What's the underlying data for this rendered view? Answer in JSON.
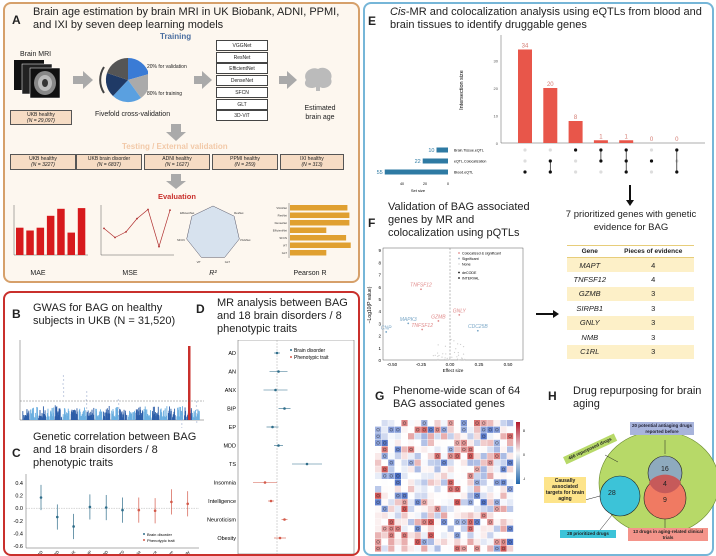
{
  "panel_a": {
    "letter": "A",
    "title": "Brain age estimation by brain MRI in UK Biobank, ADNI, PPMI, and IXI by seven deep learning models",
    "training": "Training",
    "brain_mri": "Brain MRI",
    "ukb_train": {
      "name": "UKB healthy",
      "n": "(N = 29,097)"
    },
    "split_validation": "20% for validation",
    "split_training": "80% for training",
    "cv_label": "Fivefold cross-validation",
    "models": [
      "VGGNet",
      "ResNet",
      "EfficientNet",
      "DenseNet",
      "SFCN",
      "GLT",
      "3D-ViT"
    ],
    "estimated": "Estimated brain age",
    "testing": "Testing / External validation",
    "test_sets": [
      {
        "name": "UKB healthy",
        "n": "(N = 3227)"
      },
      {
        "name": "UKB brain disorder",
        "n": "(N = 6837)"
      },
      {
        "name": "ADNI healthy",
        "n": "(N = 1627)"
      },
      {
        "name": "PPMI healthy",
        "n": "(N = 259)"
      },
      {
        "name": "IXI healthy",
        "n": "(N = 313)"
      }
    ],
    "evaluation": "Evaluation",
    "metrics": [
      "MAE",
      "MSE",
      "R²",
      "Pearson R"
    ],
    "radar_labels": [
      "DenseNet",
      "ResNet",
      "VGGNet",
      "GLT",
      "ViT",
      "SFCN",
      "EfficientNet"
    ],
    "pearson_labels": [
      "VGGNet",
      "ResNet",
      "DenseNet",
      "EfficientNet",
      "SFCN",
      "ViT",
      "GLT"
    ],
    "mae_values": [
      3.9,
      3.5,
      3.9,
      5.6,
      6.6,
      3.2,
      6.7
    ],
    "mse_values": [
      3.8,
      2.5,
      3.3,
      5.2,
      6.5,
      1.2,
      6.4
    ],
    "pearson_values": [
      0.87,
      0.9,
      0.9,
      0.55,
      0.85,
      0.92,
      0.55
    ]
  },
  "panel_b": {
    "letter": "B",
    "title": "GWAS for BAG on healthy subjects in UKB (N = 31,520)"
  },
  "panel_c": {
    "letter": "C",
    "title": "Genetic correlation between BAG and 18 brain disorders / 8 phenotypic traits",
    "yticks": [
      "0.4",
      "0.2",
      "0.0",
      "-0.2",
      "-0.4",
      "-0.6"
    ],
    "categories": [
      "AD",
      "PD",
      "ANX",
      "BIP",
      "MDD",
      "TS",
      "Insomnia",
      "Intelligence",
      "Neuroticism",
      "Obesity"
    ],
    "values": [
      0.17,
      -0.14,
      -0.29,
      0.02,
      0.01,
      -0.03,
      -0.03,
      -0.04,
      0.1,
      0.07
    ],
    "legend": [
      "Brain disorder",
      "Phenotypic trait"
    ]
  },
  "panel_d": {
    "letter": "D",
    "title": "MR analysis between BAG and 18 brain disorders / 8 phenotypic traits",
    "traits": [
      "AD",
      "AN",
      "ANX",
      "BIP",
      "EP",
      "MDD",
      "TS",
      "Insomnia",
      "Intelligence",
      "Neuroticism",
      "Obesity"
    ],
    "estimates": [
      0.0,
      0.01,
      -0.01,
      0.05,
      -0.03,
      0.01,
      0.2,
      -0.08,
      -0.04,
      0.05,
      0.02
    ],
    "legend": [
      "Brain disorder",
      "Phenotypic trait"
    ]
  },
  "panel_e": {
    "letter": "E",
    "title_italic": "Cis",
    "title_rest": "-MR and colocalization analysis using eQTLs from blood and brain tissues to identify druggable genes",
    "ylabel": "Intersection size",
    "yticks": [
      "30",
      "20",
      "10",
      "0"
    ],
    "intersections": [
      34,
      20,
      8,
      1,
      1,
      0,
      0
    ],
    "sets": [
      {
        "name": "Brain.Tissue.eQTL",
        "size": 10
      },
      {
        "name": "eQTL.Colocalization",
        "size": 22
      },
      {
        "name": "Blood.eQTL",
        "size": 55
      }
    ],
    "set_ticks": [
      "40",
      "20",
      "0"
    ],
    "set_label": "Set size"
  },
  "panel_f": {
    "letter": "F",
    "title": "Validation of BAG associated genes by MR and colocalization using pQTLs",
    "ylabel": "−Log10(P value)",
    "xlabel": "Effect size",
    "xticks": [
      "-0.50",
      "-0.25",
      "0.00",
      "0.25",
      "0.50"
    ],
    "yticks": [
      "9",
      "8",
      "7",
      "6",
      "5",
      "4",
      "3",
      "2",
      "1",
      "0"
    ],
    "legend": [
      "Colocalized & significant",
      "Significant",
      "None",
      "deCODE",
      "INTERVAL"
    ],
    "labels": [
      {
        "gene": "TNFSF12",
        "x": -0.25,
        "y": 5.8,
        "c": "#e08a8a"
      },
      {
        "gene": "MAPK3",
        "x": -0.36,
        "y": 3.0,
        "c": "#7aa7c7"
      },
      {
        "gene": "GZMB",
        "x": -0.1,
        "y": 3.2,
        "c": "#e08a8a"
      },
      {
        "gene": "TNFSF12",
        "x": -0.24,
        "y": 2.5,
        "c": "#e08a8a"
      },
      {
        "gene": "CNP",
        "x": -0.55,
        "y": 2.3,
        "c": "#7aa7c7"
      },
      {
        "gene": "GNLY",
        "x": 0.08,
        "y": 3.7,
        "c": "#e08a8a"
      },
      {
        "gene": "CDC25B",
        "x": 0.24,
        "y": 2.4,
        "c": "#7aa7c7"
      }
    ]
  },
  "genes": {
    "title": "7 prioritized genes with genetic evidence for BAG",
    "headers": [
      "Gene",
      "Pieces of evidence"
    ],
    "rows": [
      [
        "MAPT",
        "4"
      ],
      [
        "TNFSF12",
        "4"
      ],
      [
        "GZMB",
        "3"
      ],
      [
        "SIRPB1",
        "3"
      ],
      [
        "GNLY",
        "3"
      ],
      [
        "NMB",
        "3"
      ],
      [
        "C1RL",
        "3"
      ]
    ]
  },
  "panel_g": {
    "letter": "G",
    "title": "Phenome-wide scan of 64 BAG associated genes",
    "colorbar_ticks": [
      "8",
      "0",
      "-8"
    ]
  },
  "panel_h": {
    "letter": "H",
    "title": "Drug repurposing for brain aging",
    "repurposed": "466 repurposed drugs",
    "antiaging": "20 potential antiaging drugs reported before",
    "causal": "Causally associated targets for brain aging",
    "prioritized": "28 prioritized drugs",
    "trials": "13 drugs in aging-related clinical trials",
    "n_prioritized": "28",
    "n_antiaging_only": "16",
    "n_overlap": "4",
    "n_trials_only": "9"
  },
  "colors": {
    "panel_a_border": "#d6a06a",
    "panel_b_border": "#c9302c",
    "panel_e_border": "#76b6d8",
    "bar_red": "#d7191c",
    "upset_bar": "#e8564a",
    "set_bar": "#2e7aa3",
    "pearson_bar": "#e0a030",
    "green": "#b7d968",
    "teal": "#3cc3d8",
    "blue": "#8aa4c8",
    "salmon": "#f07a62"
  }
}
